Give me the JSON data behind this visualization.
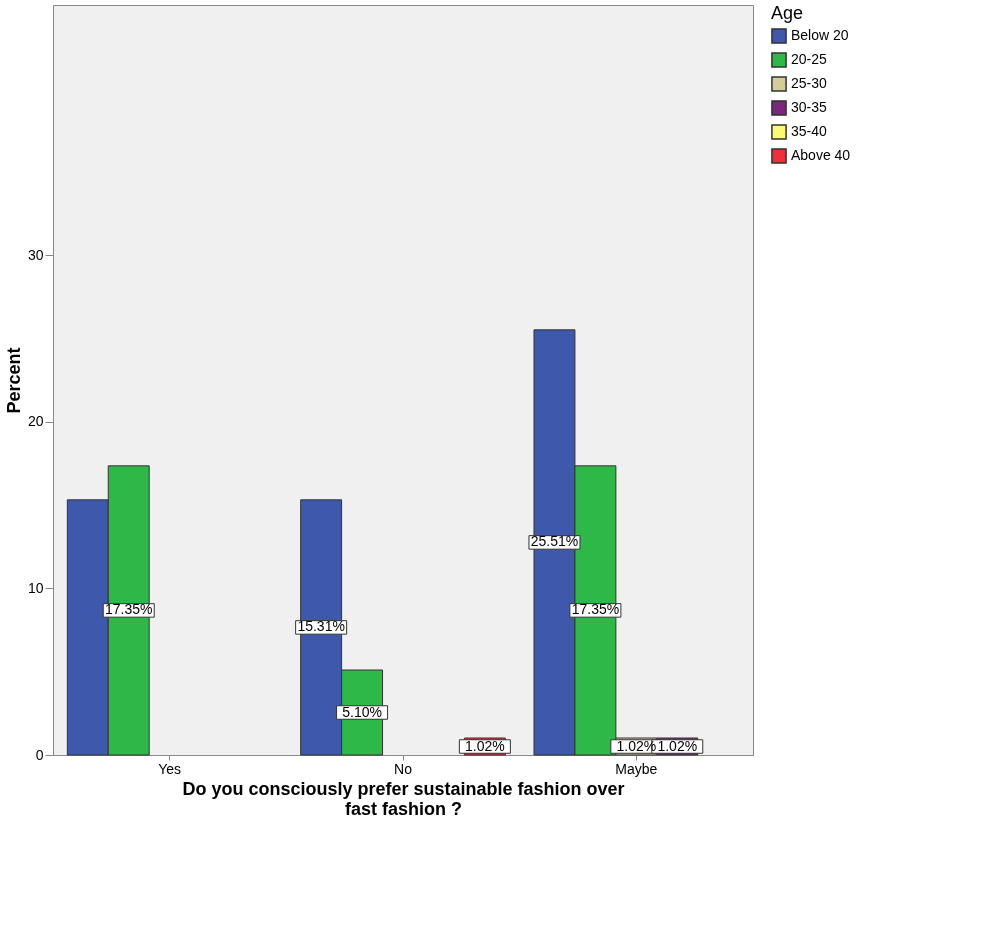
{
  "chart_data": {
    "type": "bar",
    "categories": [
      "Yes",
      "No",
      "Maybe"
    ],
    "xlabel": "Do you consciously prefer sustainable fashion over fast fashion ?",
    "ylabel": "Percent",
    "legend_title": "Age",
    "legend": "top right",
    "ylim": [
      0,
      45
    ],
    "yticks": [
      0,
      10,
      20,
      30
    ],
    "grid": false,
    "series": [
      {
        "name": "Below 20",
        "color": "#3e58ac",
        "values": [
          15.31,
          15.31,
          25.51
        ],
        "value_labels": [
          null,
          "15.31%",
          "25.51%"
        ]
      },
      {
        "name": "20-25",
        "color": "#2eb848",
        "values": [
          17.35,
          5.1,
          17.35
        ],
        "value_labels": [
          "17.35%",
          "5.10%",
          "17.35%"
        ]
      },
      {
        "name": "25-30",
        "color": "#d3ce97",
        "values": [
          null,
          null,
          1.02
        ],
        "value_labels": [
          null,
          null,
          "1.02%"
        ]
      },
      {
        "name": "30-35",
        "color": "#79287c",
        "values": [
          null,
          null,
          1.02
        ],
        "value_labels": [
          null,
          null,
          "1.02%"
        ]
      },
      {
        "name": "35-40",
        "color": "#fbf873",
        "values": [
          null,
          null,
          null
        ],
        "value_labels": [
          null,
          null,
          null
        ]
      },
      {
        "name": "Above 40",
        "color": "#ef3038",
        "values": [
          null,
          1.02,
          null
        ],
        "value_labels": [
          null,
          "1.02%",
          null
        ]
      }
    ]
  }
}
